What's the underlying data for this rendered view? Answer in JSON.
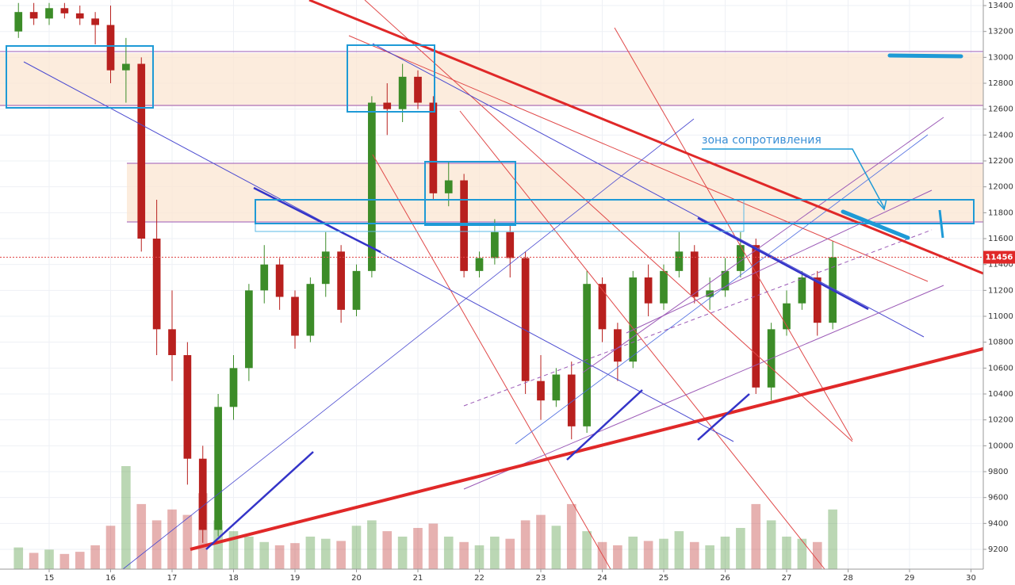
{
  "chart_data": {
    "type": "candlestick",
    "annotation": "зона сопротивления",
    "last_price": 11456,
    "x": [
      14.5,
      14.75,
      15,
      15.25,
      15.5,
      15.75,
      16,
      16.25,
      16.5,
      16.75,
      17,
      17.25,
      17.5,
      17.75,
      18,
      18.25,
      18.5,
      18.75,
      19,
      19.25,
      19.5,
      19.75,
      20,
      20.25,
      20.5,
      20.75,
      21,
      21.25,
      21.5,
      21.75,
      22,
      22.25,
      22.5,
      22.75,
      23,
      23.25,
      23.5,
      23.75,
      24,
      24.25,
      24.5,
      24.75,
      25,
      25.25,
      25.5,
      25.75,
      26,
      26.25,
      26.5,
      26.75,
      27,
      27.25,
      27.5,
      27.75
    ],
    "open": [
      13200,
      13350,
      13300,
      13380,
      13340,
      13300,
      13250,
      12900,
      12950,
      11600,
      10900,
      10700,
      9900,
      9350,
      10300,
      10600,
      11200,
      11400,
      11150,
      10850,
      11250,
      11500,
      11050,
      11350,
      12650,
      12600,
      12850,
      12650,
      11950,
      12050,
      11350,
      11450,
      11650,
      11450,
      10500,
      10350,
      10550,
      10150,
      11250,
      10900,
      10650,
      11300,
      11100,
      11350,
      11500,
      11150,
      11200,
      11350,
      11550,
      10450,
      10900,
      11100,
      11300,
      10950
    ],
    "high": [
      13420,
      13420,
      13420,
      13420,
      13400,
      13350,
      13400,
      13150,
      13000,
      11900,
      11200,
      10800,
      10000,
      10400,
      10700,
      11250,
      11550,
      11450,
      11200,
      11300,
      11650,
      11550,
      11400,
      12700,
      12800,
      12950,
      12900,
      12700,
      12200,
      12100,
      11500,
      11750,
      11700,
      11500,
      10700,
      10600,
      10650,
      11350,
      11300,
      10950,
      11350,
      11400,
      11400,
      11650,
      11550,
      11300,
      11450,
      11650,
      11600,
      10950,
      11200,
      11350,
      11350,
      11580
    ],
    "low": [
      13150,
      13250,
      13250,
      13300,
      13250,
      13100,
      12800,
      12650,
      11500,
      10700,
      10500,
      9700,
      9250,
      9300,
      10200,
      10500,
      11100,
      11050,
      10750,
      10800,
      11150,
      10950,
      11000,
      11300,
      12400,
      12500,
      12600,
      11900,
      11850,
      11300,
      11300,
      11400,
      11300,
      10400,
      10200,
      10300,
      10050,
      10100,
      10800,
      10500,
      10600,
      11000,
      11050,
      11300,
      11100,
      11050,
      11150,
      11300,
      10400,
      10350,
      10850,
      11050,
      10850,
      10900
    ],
    "close": [
      13350,
      13300,
      13380,
      13340,
      13300,
      13250,
      12900,
      12950,
      11600,
      10900,
      10700,
      9900,
      9350,
      10300,
      10600,
      11200,
      11400,
      11150,
      10850,
      11250,
      11500,
      11050,
      11350,
      12650,
      12600,
      12850,
      12650,
      11950,
      12050,
      11350,
      11450,
      11650,
      11450,
      10500,
      10350,
      10550,
      10150,
      11250,
      10900,
      10650,
      11300,
      11100,
      11350,
      11500,
      11150,
      11200,
      11350,
      11550,
      10450,
      10900,
      11100,
      11300,
      10950,
      11456
    ],
    "volume": [
      20,
      15,
      18,
      14,
      16,
      22,
      40,
      95,
      60,
      45,
      55,
      50,
      70,
      45,
      35,
      30,
      25,
      22,
      24,
      30,
      28,
      26,
      40,
      45,
      35,
      30,
      38,
      42,
      30,
      25,
      22,
      30,
      28,
      45,
      50,
      40,
      60,
      35,
      25,
      22,
      30,
      26,
      28,
      35,
      25,
      22,
      30,
      38,
      60,
      45,
      30,
      28,
      25,
      55
    ],
    "up_color": "#3c8c28",
    "down_color": "#b8201e",
    "xlim": [
      14.2,
      30.2
    ],
    "ylim": [
      9047,
      13443
    ],
    "xticks": [
      15,
      16,
      17,
      18,
      19,
      20,
      21,
      22,
      23,
      24,
      25,
      26,
      27,
      28,
      29,
      30
    ],
    "yticks": [
      9200,
      9400,
      9600,
      9800,
      10000,
      10200,
      10400,
      10600,
      10800,
      11000,
      11200,
      11400,
      11600,
      11800,
      12000,
      12200,
      12400,
      12600,
      12800,
      13000,
      13200,
      13400
    ],
    "grid": true
  }
}
